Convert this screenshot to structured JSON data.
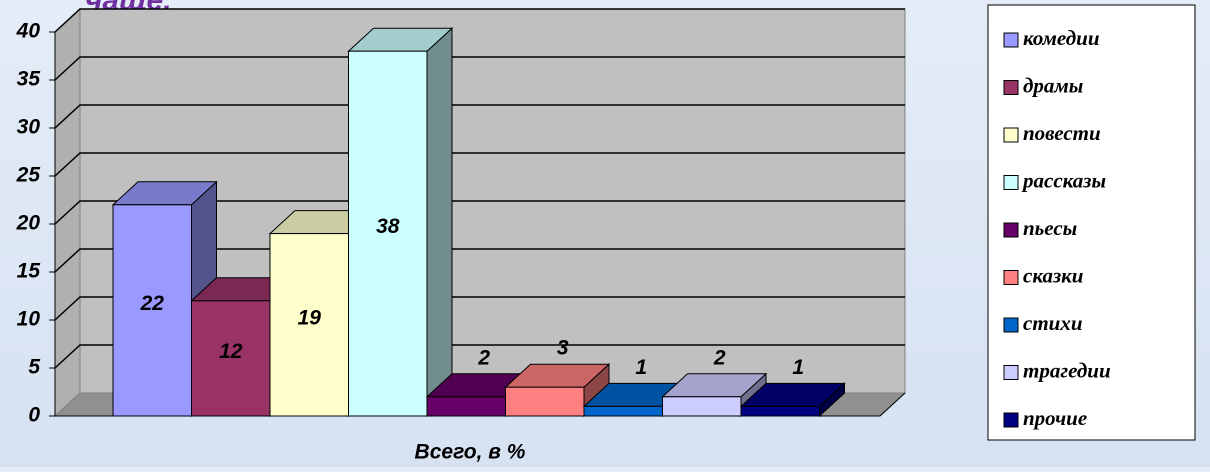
{
  "chart_data": {
    "type": "bar3d",
    "title": "чаще.",
    "categories": [
      "Всего, в %"
    ],
    "series": [
      {
        "name": "комедии",
        "color": "#9999ff",
        "values": [
          22
        ]
      },
      {
        "name": "драмы",
        "color": "#993366",
        "values": [
          12
        ]
      },
      {
        "name": "повести",
        "color": "#ffffcc",
        "values": [
          19
        ]
      },
      {
        "name": "рассказы",
        "color": "#ccffff",
        "values": [
          38
        ]
      },
      {
        "name": "пьесы",
        "color": "#660066",
        "values": [
          2
        ]
      },
      {
        "name": "сказки",
        "color": "#ff8080",
        "values": [
          3
        ]
      },
      {
        "name": "стихи",
        "color": "#0066cc",
        "values": [
          1
        ]
      },
      {
        "name": "трагедии",
        "color": "#ccccff",
        "values": [
          2
        ]
      },
      {
        "name": "прочие",
        "color": "#000080",
        "values": [
          1
        ]
      }
    ],
    "ylim": [
      0,
      40
    ],
    "yticks": [
      0,
      5,
      10,
      15,
      20,
      25,
      30,
      35,
      40
    ],
    "grid": true,
    "legend": "right"
  }
}
